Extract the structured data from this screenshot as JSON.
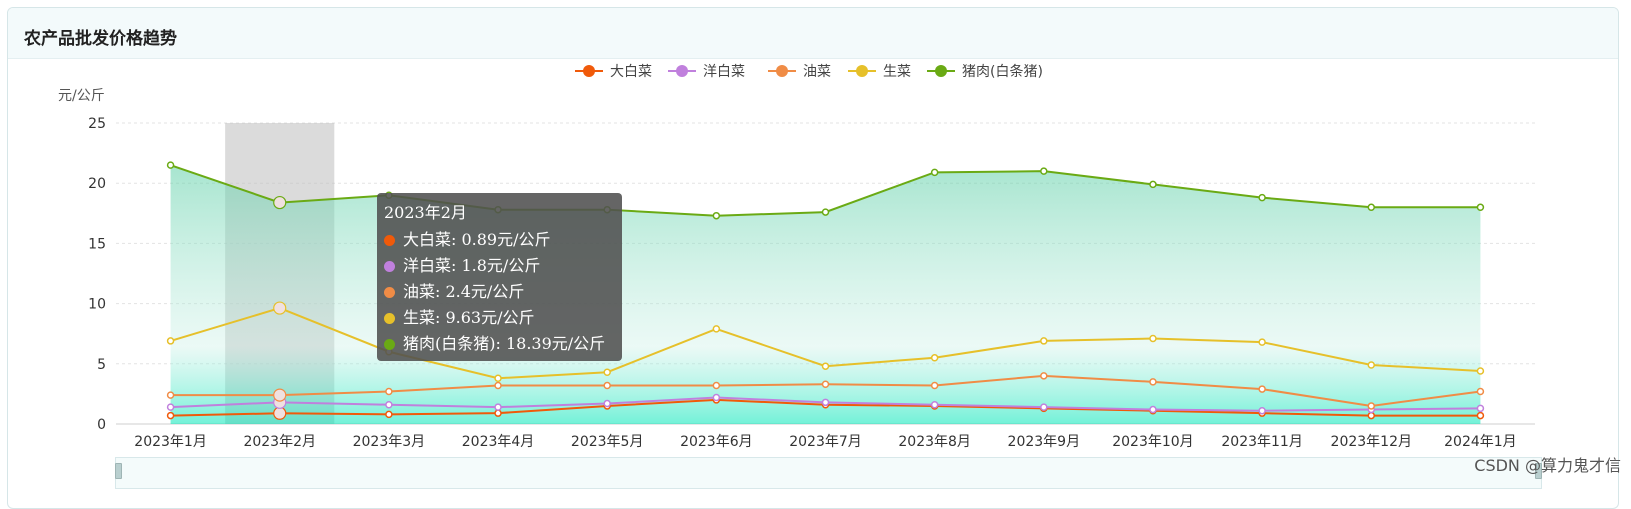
{
  "card": {
    "title": "农产品批发价格趋势"
  },
  "watermark": "CSDN @算力鬼才信",
  "chart_data": {
    "type": "line",
    "ylabel": "元/公斤",
    "ylim": [
      0,
      25
    ],
    "yticks": [
      0,
      5,
      10,
      15,
      20,
      25
    ],
    "grid": true,
    "legend_position": "top-center",
    "categories": [
      "2023年1月",
      "2023年2月",
      "2023年3月",
      "2023年4月",
      "2023年5月",
      "2023年6月",
      "2023年7月",
      "2023年8月",
      "2023年9月",
      "2023年10月",
      "2023年11月",
      "2023年12月",
      "2024年1月"
    ],
    "series": [
      {
        "name": "大白菜",
        "color": "#f05a0a",
        "values": [
          0.7,
          0.89,
          0.8,
          0.9,
          1.5,
          2.0,
          1.6,
          1.5,
          1.3,
          1.1,
          0.9,
          0.7,
          0.7
        ]
      },
      {
        "name": "洋白菜",
        "color": "#c080dd",
        "values": [
          1.4,
          1.8,
          1.6,
          1.4,
          1.7,
          2.2,
          1.8,
          1.6,
          1.4,
          1.2,
          1.1,
          1.2,
          1.3
        ]
      },
      {
        "name": "油菜",
        "color": "#f08c46",
        "values": [
          2.4,
          2.4,
          2.7,
          3.2,
          3.2,
          3.2,
          3.3,
          3.2,
          4.0,
          3.5,
          2.9,
          1.5,
          2.7
        ]
      },
      {
        "name": "生菜",
        "color": "#e6c02a",
        "values": [
          6.9,
          9.63,
          6.0,
          3.8,
          4.3,
          7.9,
          4.8,
          5.5,
          6.9,
          7.1,
          6.8,
          4.9,
          4.4
        ]
      },
      {
        "name": "猪肉(白条猪)",
        "color": "#6aaa14",
        "values": [
          21.5,
          18.39,
          19.0,
          17.8,
          17.8,
          17.3,
          17.6,
          20.9,
          21.0,
          19.9,
          18.8,
          18.0,
          18.0
        ]
      }
    ],
    "tooltip": {
      "title": "2023年2月",
      "rows": [
        "大白菜: 0.89元/公斤",
        "洋白菜: 1.8元/公斤",
        "油菜: 2.4元/公斤",
        "生菜: 9.63元/公斤",
        "猪肉(白条猪): 18.39元/公斤"
      ]
    },
    "highlighted_category": "2023年2月"
  }
}
